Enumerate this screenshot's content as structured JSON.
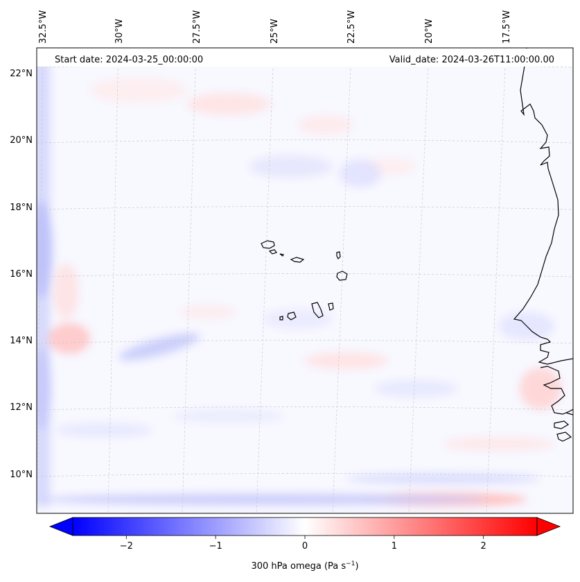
{
  "header": {
    "start_date": "Start date: 2024-03-25_00:00:00",
    "valid_date": "Valid_date: 2024-03-26T11:00:00.00"
  },
  "map": {
    "projection": "lambert-conformal",
    "lat_labels": [
      "22°N",
      "20°N",
      "18°N",
      "16°N",
      "14°N",
      "12°N",
      "10°N"
    ],
    "lon_labels": [
      "32.5°W",
      "30°W",
      "27.5°W",
      "25°W",
      "22.5°W",
      "20°W",
      "17.5°W"
    ],
    "grid": true,
    "background_color": "#f8f8ff"
  },
  "colorbar": {
    "label_text": "300 hPa omega (Pa s",
    "label_exponent": "−1",
    "label_close": ")",
    "ticks": [
      "−2",
      "−1",
      "0",
      "1",
      "2"
    ],
    "tick_values": [
      -2,
      -1,
      0,
      1,
      2
    ],
    "range": [
      -2.6,
      2.6
    ],
    "colormap": "bwr",
    "extend": "both",
    "low_color": "#0000ff",
    "mid_color": "#ffffff",
    "high_color": "#ff0000"
  }
}
